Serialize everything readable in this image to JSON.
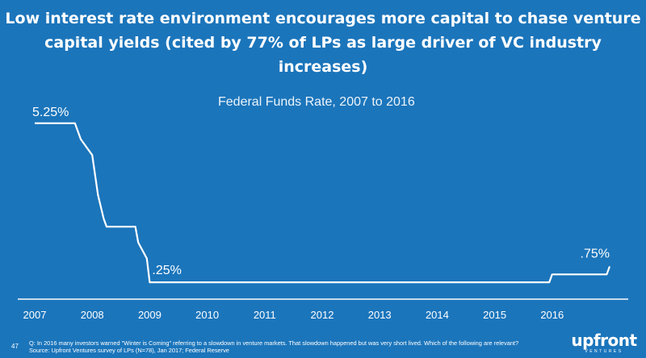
{
  "headline": {
    "line1": "Low interest rate environment encourages more capital to chase venture",
    "line2": "capital yields (cited by 77% of LPs as large driver of VC industry increases)"
  },
  "chart_data": {
    "type": "line",
    "title": "Federal Funds Rate, 2007 to 2016",
    "xlabel": "",
    "ylabel": "",
    "xlim": [
      2007,
      2017
    ],
    "ylim": [
      0,
      5.5
    ],
    "x_ticks": [
      "2007",
      "2008",
      "2009",
      "2010",
      "2011",
      "2012",
      "2013",
      "2014",
      "2015",
      "2016"
    ],
    "grid": false,
    "series": [
      {
        "x": [
          2007.0,
          2007.7,
          2007.8,
          2007.9,
          2008.0,
          2008.1,
          2008.2,
          2008.25,
          2008.4,
          2008.75,
          2008.8,
          2008.95,
          2009.0,
          2015.95,
          2016.0,
          2016.95,
          2017.0
        ],
        "y": [
          5.25,
          5.25,
          4.75,
          4.5,
          4.25,
          3.0,
          2.25,
          2.0,
          2.0,
          2.0,
          1.5,
          1.0,
          0.25,
          0.25,
          0.5,
          0.5,
          0.75
        ]
      }
    ],
    "data_labels": [
      {
        "text": "5.25%",
        "x": 2007.0,
        "y": 5.25
      },
      {
        "text": ".25%",
        "x": 2009.0,
        "y": 0.25
      },
      {
        "text": ".75%",
        "x": 2017.0,
        "y": 0.75
      }
    ],
    "line_color": "#ffffff",
    "background_color": "#1b75bb"
  },
  "footnote": {
    "line1": "Q: In 2016 many investors warned \"Winter is Coming\" referring to a slowdown in venture markets. That slowdown happened but was very short lived. Which of the following are relevant?",
    "line2": "Source: Upfront Ventures survey of LPs (N=78), Jan 2017; Federal Reserve"
  },
  "page_number": "47",
  "logo": {
    "name": "upfront",
    "sub": "VENTURES"
  }
}
